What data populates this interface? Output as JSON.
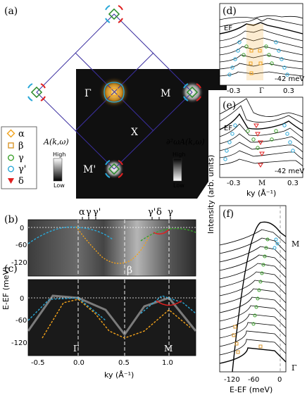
{
  "colors": {
    "alpha": "#f2a21a",
    "beta": "#e0a040",
    "gamma": "#3aa02a",
    "gamma_prime": "#2aa8d8",
    "delta": "#e02020",
    "bz": "#3b2fa0",
    "pocket_red": "#e02020",
    "pocket_blue": "#2aa8d8",
    "pocket_green": "#2a8a2a"
  },
  "panel_a": {
    "label": "(a)",
    "gamma_label": "Γ",
    "m_label": "M",
    "m_prime_label": "M'",
    "x_label": "X",
    "legend": [
      {
        "symbol": "diamond-icon",
        "name": "α",
        "color": "#f2a21a"
      },
      {
        "symbol": "square-icon",
        "name": "β",
        "color": "#d8962c"
      },
      {
        "symbol": "circle-icon",
        "name": "γ",
        "color": "#3aa02a"
      },
      {
        "symbol": "circle-icon",
        "name": "γ'",
        "color": "#2aa8d8"
      },
      {
        "symbol": "triangle-down-icon",
        "name": "δ",
        "color": "#e02020"
      }
    ],
    "colorbar1_label": "A(k,ω)",
    "colorbar2_label": "∂²ωA(k,ω)",
    "high": "High",
    "low": "Low"
  },
  "panel_b": {
    "label": "(b)",
    "top_labels": [
      "α",
      "γ",
      "γ'",
      "γ'",
      "δ",
      "γ"
    ],
    "beta_label": "β",
    "yticks": [
      "0",
      "-60",
      "-120"
    ]
  },
  "panel_c": {
    "label": "(c)",
    "yticks": [
      "0",
      "-60",
      "-120"
    ],
    "gamma_label": "Γ",
    "m_label": "M"
  },
  "shared_axes": {
    "ylabel": "E-EF (meV)",
    "xticks": [
      "-0.5",
      "0.0",
      "0.5",
      "1.0"
    ],
    "xlabel": "ky (Å⁻¹)"
  },
  "panel_d": {
    "label": "(d)",
    "ef": "EF",
    "energy": "-42 meV",
    "xticks": [
      "-0.3",
      "Γ",
      "0.3"
    ]
  },
  "panel_e": {
    "label": "(e)",
    "ef": "EF",
    "energy": "-42 meV",
    "xticks": [
      "-0.3",
      "M",
      "0.3"
    ],
    "xlabel": "ky (Å⁻¹)"
  },
  "panel_f": {
    "label": "(f)",
    "top_point": "M",
    "bottom_point": "Γ",
    "xticks": [
      "-120",
      "-60",
      "0"
    ],
    "xlabel": "E-EF (meV)"
  },
  "intensity_label": "Intensity (arb. units)"
}
